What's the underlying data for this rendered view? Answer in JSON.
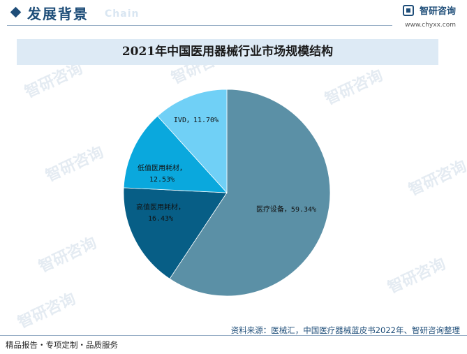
{
  "header": {
    "title": "发展背景",
    "subtitle": "Chain",
    "brand_name": "智研咨询",
    "brand_url": "www.chyxx.com"
  },
  "watermark": {
    "text": "智研咨询"
  },
  "chart_data": {
    "type": "pie",
    "title": "2021年中国医用器械行业市场规模结构",
    "start_angle_deg": 0,
    "direction": "clockwise",
    "slices": [
      {
        "label": "医疗设备，59.34%",
        "value": 59.34,
        "color": "#5b90a6"
      },
      {
        "label_lines": [
          "高值医用耗材，",
          "16.43%"
        ],
        "value": 16.43,
        "color": "#075e86"
      },
      {
        "label_lines": [
          "低值医用耗材，",
          "12.53%"
        ],
        "value": 12.53,
        "color": "#0aa8dd"
      },
      {
        "label": "IVD，11.70%",
        "value": 11.7,
        "color": "#70d0f6"
      }
    ]
  },
  "source": "资料来源：医械汇，中国医疗器械蓝皮书2022年、智研咨询整理",
  "footer": "精品报告・专项定制・品质服务"
}
